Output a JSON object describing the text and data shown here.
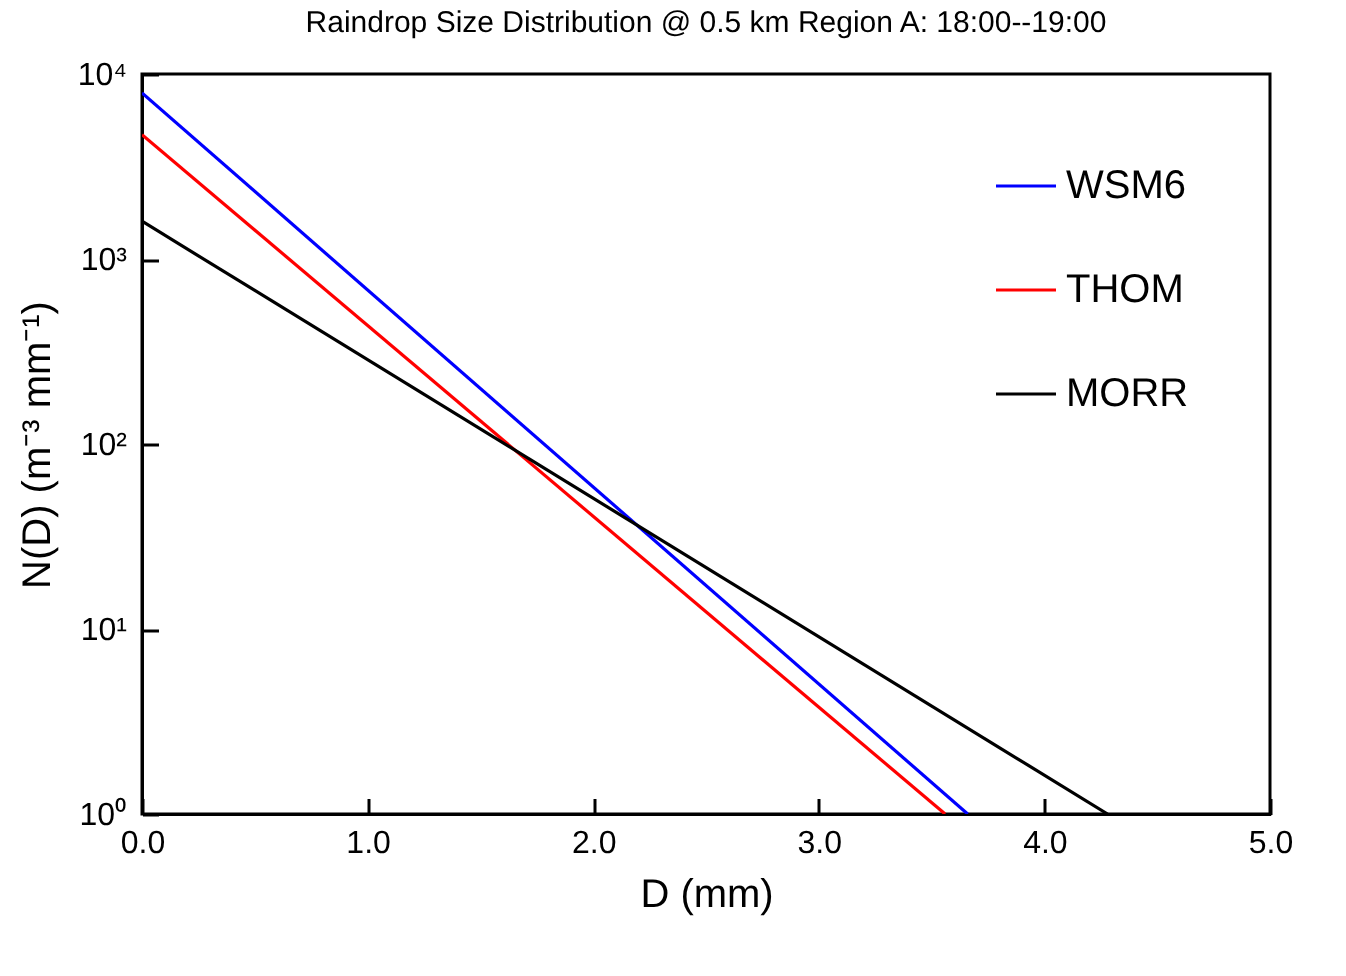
{
  "chart_data": {
    "type": "line",
    "title": "Raindrop Size Distribution @ 0.5 km Region A: 18:00--19:00",
    "xlabel": "D (mm)",
    "ylabel": "N(D) (m⁻³ mm⁻¹)",
    "series": [
      {
        "name": "WSM6",
        "color": "#0000ff",
        "x": [
          0,
          3.66
        ],
        "values": [
          7900,
          1
        ]
      },
      {
        "name": "THOM",
        "color": "#ff0000",
        "x": [
          0,
          3.56
        ],
        "values": [
          4700,
          1
        ]
      },
      {
        "name": "MORR",
        "color": "#000000",
        "x": [
          0,
          4.28
        ],
        "values": [
          1600,
          1
        ]
      }
    ],
    "xlim": [
      0,
      5
    ],
    "xticks": [
      {
        "value": 0,
        "label": "0.0"
      },
      {
        "value": 1,
        "label": "1.0"
      },
      {
        "value": 2,
        "label": "2.0"
      },
      {
        "value": 3,
        "label": "3.0"
      },
      {
        "value": 4,
        "label": "4.0"
      },
      {
        "value": 5,
        "label": "5.0"
      }
    ],
    "ylim": [
      1,
      10000
    ],
    "yticks": [
      {
        "value": 1,
        "label": "10⁰"
      },
      {
        "value": 10,
        "label": "10¹"
      },
      {
        "value": 100,
        "label": "10²"
      },
      {
        "value": 1000,
        "label": "10³"
      },
      {
        "value": 10000,
        "label": "10⁴"
      }
    ],
    "log": "y",
    "grid": false,
    "legend": "top right",
    "marker": "none",
    "line_style": "solid"
  }
}
